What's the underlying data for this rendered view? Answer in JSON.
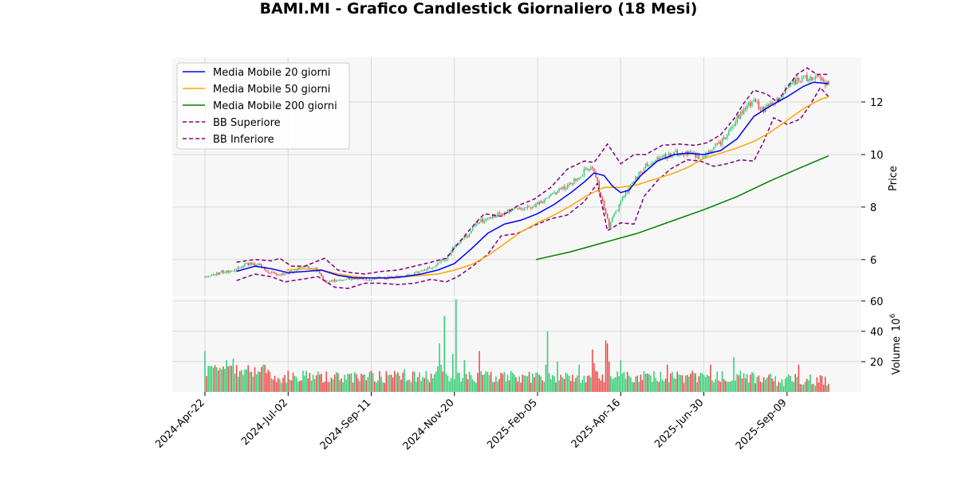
{
  "chart_data": {
    "type": "candlestick",
    "title": "BAMI.MI - Grafico Candlestick Giornaliero (18 Mesi)",
    "price_ylabel": "Price",
    "volume_ylabel": "Volume",
    "volume_scale_exponent": "6",
    "price_ylim": [
      4.6,
      13.7
    ],
    "price_yticks": [
      6,
      8,
      10,
      12
    ],
    "volume_ylim": [
      0,
      62
    ],
    "volume_yticks": [
      20,
      40,
      60
    ],
    "x_tick_labels": [
      "2024-Apr-22",
      "2024-Jul-02",
      "2024-Sep-11",
      "2024-Nov-20",
      "2025-Feb-05",
      "2025-Apr-16",
      "2025-Jun-30",
      "2025-Sep-09"
    ],
    "x_tick_index": [
      0,
      50,
      100,
      150,
      200,
      250,
      300,
      350
    ],
    "n_days": 376,
    "grid": true,
    "legend_position": "upper-left",
    "legend": [
      {
        "label": "Media Mobile 20 giorni",
        "color": "#0000ff",
        "style": "solid"
      },
      {
        "label": "Media Mobile 50 giorni",
        "color": "#ffa500",
        "style": "solid"
      },
      {
        "label": "Media Mobile 200 giorni",
        "color": "#008000",
        "style": "solid"
      },
      {
        "label": "BB Superiore",
        "color": "#800080",
        "style": "dashed"
      },
      {
        "label": "BB Inferiore",
        "color": "#800080",
        "style": "dashed"
      }
    ],
    "colors": {
      "up": "#2ecc71",
      "down": "#ef4444",
      "panel_bg": "#f7f7f7",
      "grid": "#d9d9d9"
    },
    "close_anchors": [
      [
        0,
        5.3
      ],
      [
        5,
        5.45
      ],
      [
        12,
        5.55
      ],
      [
        18,
        5.6
      ],
      [
        24,
        5.85
      ],
      [
        32,
        5.82
      ],
      [
        38,
        5.55
      ],
      [
        45,
        5.4
      ],
      [
        52,
        5.55
      ],
      [
        60,
        5.75
      ],
      [
        66,
        5.7
      ],
      [
        72,
        5.15
      ],
      [
        80,
        5.2
      ],
      [
        90,
        5.3
      ],
      [
        100,
        5.25
      ],
      [
        108,
        5.3
      ],
      [
        115,
        5.35
      ],
      [
        122,
        5.4
      ],
      [
        130,
        5.55
      ],
      [
        138,
        5.75
      ],
      [
        145,
        6.05
      ],
      [
        150,
        6.5
      ],
      [
        158,
        6.95
      ],
      [
        163,
        7.4
      ],
      [
        170,
        7.55
      ],
      [
        178,
        7.75
      ],
      [
        186,
        7.9
      ],
      [
        195,
        8.0
      ],
      [
        202,
        8.2
      ],
      [
        210,
        8.5
      ],
      [
        220,
        8.9
      ],
      [
        228,
        9.35
      ],
      [
        233,
        9.5
      ],
      [
        236,
        8.9
      ],
      [
        240,
        7.9
      ],
      [
        243,
        7.3
      ],
      [
        247,
        7.8
      ],
      [
        252,
        8.5
      ],
      [
        258,
        9.0
      ],
      [
        265,
        9.55
      ],
      [
        272,
        9.8
      ],
      [
        280,
        10.0
      ],
      [
        286,
        10.1
      ],
      [
        292,
        10.05
      ],
      [
        298,
        9.9
      ],
      [
        305,
        10.25
      ],
      [
        312,
        10.55
      ],
      [
        318,
        11.2
      ],
      [
        325,
        11.85
      ],
      [
        330,
        12.0
      ],
      [
        336,
        11.7
      ],
      [
        340,
        11.85
      ],
      [
        346,
        12.2
      ],
      [
        352,
        12.75
      ],
      [
        358,
        12.85
      ],
      [
        364,
        12.95
      ],
      [
        368,
        12.9
      ],
      [
        372,
        12.75
      ],
      [
        375,
        12.6
      ]
    ],
    "ma20_points": [
      [
        19,
        5.55
      ],
      [
        30,
        5.75
      ],
      [
        40,
        5.65
      ],
      [
        50,
        5.5
      ],
      [
        60,
        5.55
      ],
      [
        70,
        5.6
      ],
      [
        80,
        5.4
      ],
      [
        90,
        5.3
      ],
      [
        100,
        5.3
      ],
      [
        110,
        5.3
      ],
      [
        120,
        5.35
      ],
      [
        130,
        5.45
      ],
      [
        140,
        5.6
      ],
      [
        150,
        5.85
      ],
      [
        160,
        6.4
      ],
      [
        170,
        7.0
      ],
      [
        180,
        7.35
      ],
      [
        190,
        7.5
      ],
      [
        200,
        7.75
      ],
      [
        210,
        8.1
      ],
      [
        220,
        8.55
      ],
      [
        228,
        8.95
      ],
      [
        234,
        9.3
      ],
      [
        240,
        9.2
      ],
      [
        245,
        8.8
      ],
      [
        250,
        8.55
      ],
      [
        255,
        8.65
      ],
      [
        262,
        9.2
      ],
      [
        272,
        9.75
      ],
      [
        282,
        10.0
      ],
      [
        290,
        10.05
      ],
      [
        300,
        10.0
      ],
      [
        310,
        10.15
      ],
      [
        320,
        10.6
      ],
      [
        330,
        11.45
      ],
      [
        340,
        11.85
      ],
      [
        350,
        12.2
      ],
      [
        360,
        12.6
      ],
      [
        366,
        12.75
      ],
      [
        375,
        12.7
      ]
    ],
    "ma50_points": [
      [
        49,
        5.6
      ],
      [
        60,
        5.65
      ],
      [
        70,
        5.6
      ],
      [
        80,
        5.45
      ],
      [
        90,
        5.35
      ],
      [
        100,
        5.3
      ],
      [
        110,
        5.3
      ],
      [
        120,
        5.35
      ],
      [
        130,
        5.4
      ],
      [
        140,
        5.45
      ],
      [
        150,
        5.6
      ],
      [
        160,
        5.8
      ],
      [
        170,
        6.15
      ],
      [
        180,
        6.6
      ],
      [
        190,
        7.05
      ],
      [
        200,
        7.4
      ],
      [
        210,
        7.7
      ],
      [
        220,
        8.05
      ],
      [
        230,
        8.45
      ],
      [
        240,
        8.75
      ],
      [
        250,
        8.75
      ],
      [
        260,
        8.85
      ],
      [
        270,
        9.05
      ],
      [
        280,
        9.25
      ],
      [
        290,
        9.5
      ],
      [
        300,
        9.85
      ],
      [
        310,
        10.05
      ],
      [
        320,
        10.25
      ],
      [
        330,
        10.5
      ],
      [
        340,
        10.85
      ],
      [
        350,
        11.3
      ],
      [
        360,
        11.75
      ],
      [
        370,
        12.1
      ],
      [
        375,
        12.2
      ]
    ],
    "ma200_points": [
      [
        199,
        6.0
      ],
      [
        220,
        6.3
      ],
      [
        240,
        6.65
      ],
      [
        260,
        7.0
      ],
      [
        280,
        7.45
      ],
      [
        300,
        7.9
      ],
      [
        320,
        8.4
      ],
      [
        340,
        9.0
      ],
      [
        360,
        9.55
      ],
      [
        375,
        9.95
      ]
    ],
    "bb_upper_points": [
      [
        19,
        5.9
      ],
      [
        30,
        6.0
      ],
      [
        40,
        5.95
      ],
      [
        45,
        6.05
      ],
      [
        52,
        5.75
      ],
      [
        60,
        5.75
      ],
      [
        66,
        5.9
      ],
      [
        72,
        6.05
      ],
      [
        80,
        5.6
      ],
      [
        88,
        5.5
      ],
      [
        96,
        5.45
      ],
      [
        106,
        5.55
      ],
      [
        116,
        5.6
      ],
      [
        126,
        5.75
      ],
      [
        136,
        5.9
      ],
      [
        145,
        6.05
      ],
      [
        152,
        6.6
      ],
      [
        160,
        7.2
      ],
      [
        168,
        7.75
      ],
      [
        178,
        7.65
      ],
      [
        188,
        8.05
      ],
      [
        198,
        8.3
      ],
      [
        208,
        8.75
      ],
      [
        218,
        9.45
      ],
      [
        228,
        9.75
      ],
      [
        234,
        9.7
      ],
      [
        242,
        10.4
      ],
      [
        250,
        9.65
      ],
      [
        258,
        10.0
      ],
      [
        265,
        10.0
      ],
      [
        275,
        10.35
      ],
      [
        285,
        10.4
      ],
      [
        295,
        10.35
      ],
      [
        302,
        10.45
      ],
      [
        310,
        10.75
      ],
      [
        318,
        11.35
      ],
      [
        324,
        11.95
      ],
      [
        330,
        12.45
      ],
      [
        338,
        12.3
      ],
      [
        344,
        12.0
      ],
      [
        350,
        12.55
      ],
      [
        356,
        13.05
      ],
      [
        362,
        13.3
      ],
      [
        368,
        13.05
      ],
      [
        375,
        13.05
      ]
    ],
    "bb_lower_points": [
      [
        19,
        5.2
      ],
      [
        30,
        5.45
      ],
      [
        40,
        5.35
      ],
      [
        48,
        5.15
      ],
      [
        58,
        5.25
      ],
      [
        68,
        5.35
      ],
      [
        78,
        4.95
      ],
      [
        86,
        4.9
      ],
      [
        96,
        5.1
      ],
      [
        106,
        5.1
      ],
      [
        116,
        5.05
      ],
      [
        126,
        5.1
      ],
      [
        136,
        5.25
      ],
      [
        145,
        5.15
      ],
      [
        152,
        5.35
      ],
      [
        160,
        5.7
      ],
      [
        170,
        6.2
      ],
      [
        178,
        6.9
      ],
      [
        188,
        7.0
      ],
      [
        198,
        7.3
      ],
      [
        208,
        7.55
      ],
      [
        218,
        7.7
      ],
      [
        228,
        8.2
      ],
      [
        236,
        8.9
      ],
      [
        242,
        7.1
      ],
      [
        250,
        7.4
      ],
      [
        258,
        7.35
      ],
      [
        264,
        8.4
      ],
      [
        272,
        9.0
      ],
      [
        280,
        9.45
      ],
      [
        290,
        9.8
      ],
      [
        298,
        9.75
      ],
      [
        306,
        9.55
      ],
      [
        314,
        9.65
      ],
      [
        322,
        9.8
      ],
      [
        330,
        9.75
      ],
      [
        336,
        10.5
      ],
      [
        342,
        11.4
      ],
      [
        350,
        11.15
      ],
      [
        358,
        11.35
      ],
      [
        364,
        11.9
      ],
      [
        370,
        12.55
      ],
      [
        375,
        12.2
      ]
    ],
    "volume_spikes": [
      [
        0,
        27
      ],
      [
        13,
        21
      ],
      [
        17,
        22
      ],
      [
        35,
        18
      ],
      [
        70,
        12
      ],
      [
        100,
        14
      ],
      [
        120,
        15
      ],
      [
        140,
        17
      ],
      [
        141,
        32
      ],
      [
        142,
        18
      ],
      [
        144,
        50
      ],
      [
        149,
        25
      ],
      [
        151,
        61
      ],
      [
        156,
        21
      ],
      [
        165,
        27
      ],
      [
        205,
        18
      ],
      [
        206,
        40
      ],
      [
        212,
        20
      ],
      [
        225,
        18
      ],
      [
        233,
        28
      ],
      [
        234,
        19
      ],
      [
        241,
        34
      ],
      [
        242,
        32
      ],
      [
        243,
        20
      ],
      [
        250,
        21
      ],
      [
        278,
        18
      ],
      [
        293,
        14
      ],
      [
        304,
        18
      ],
      [
        318,
        23
      ],
      [
        340,
        12
      ],
      [
        357,
        18
      ],
      [
        370,
        11
      ]
    ]
  }
}
